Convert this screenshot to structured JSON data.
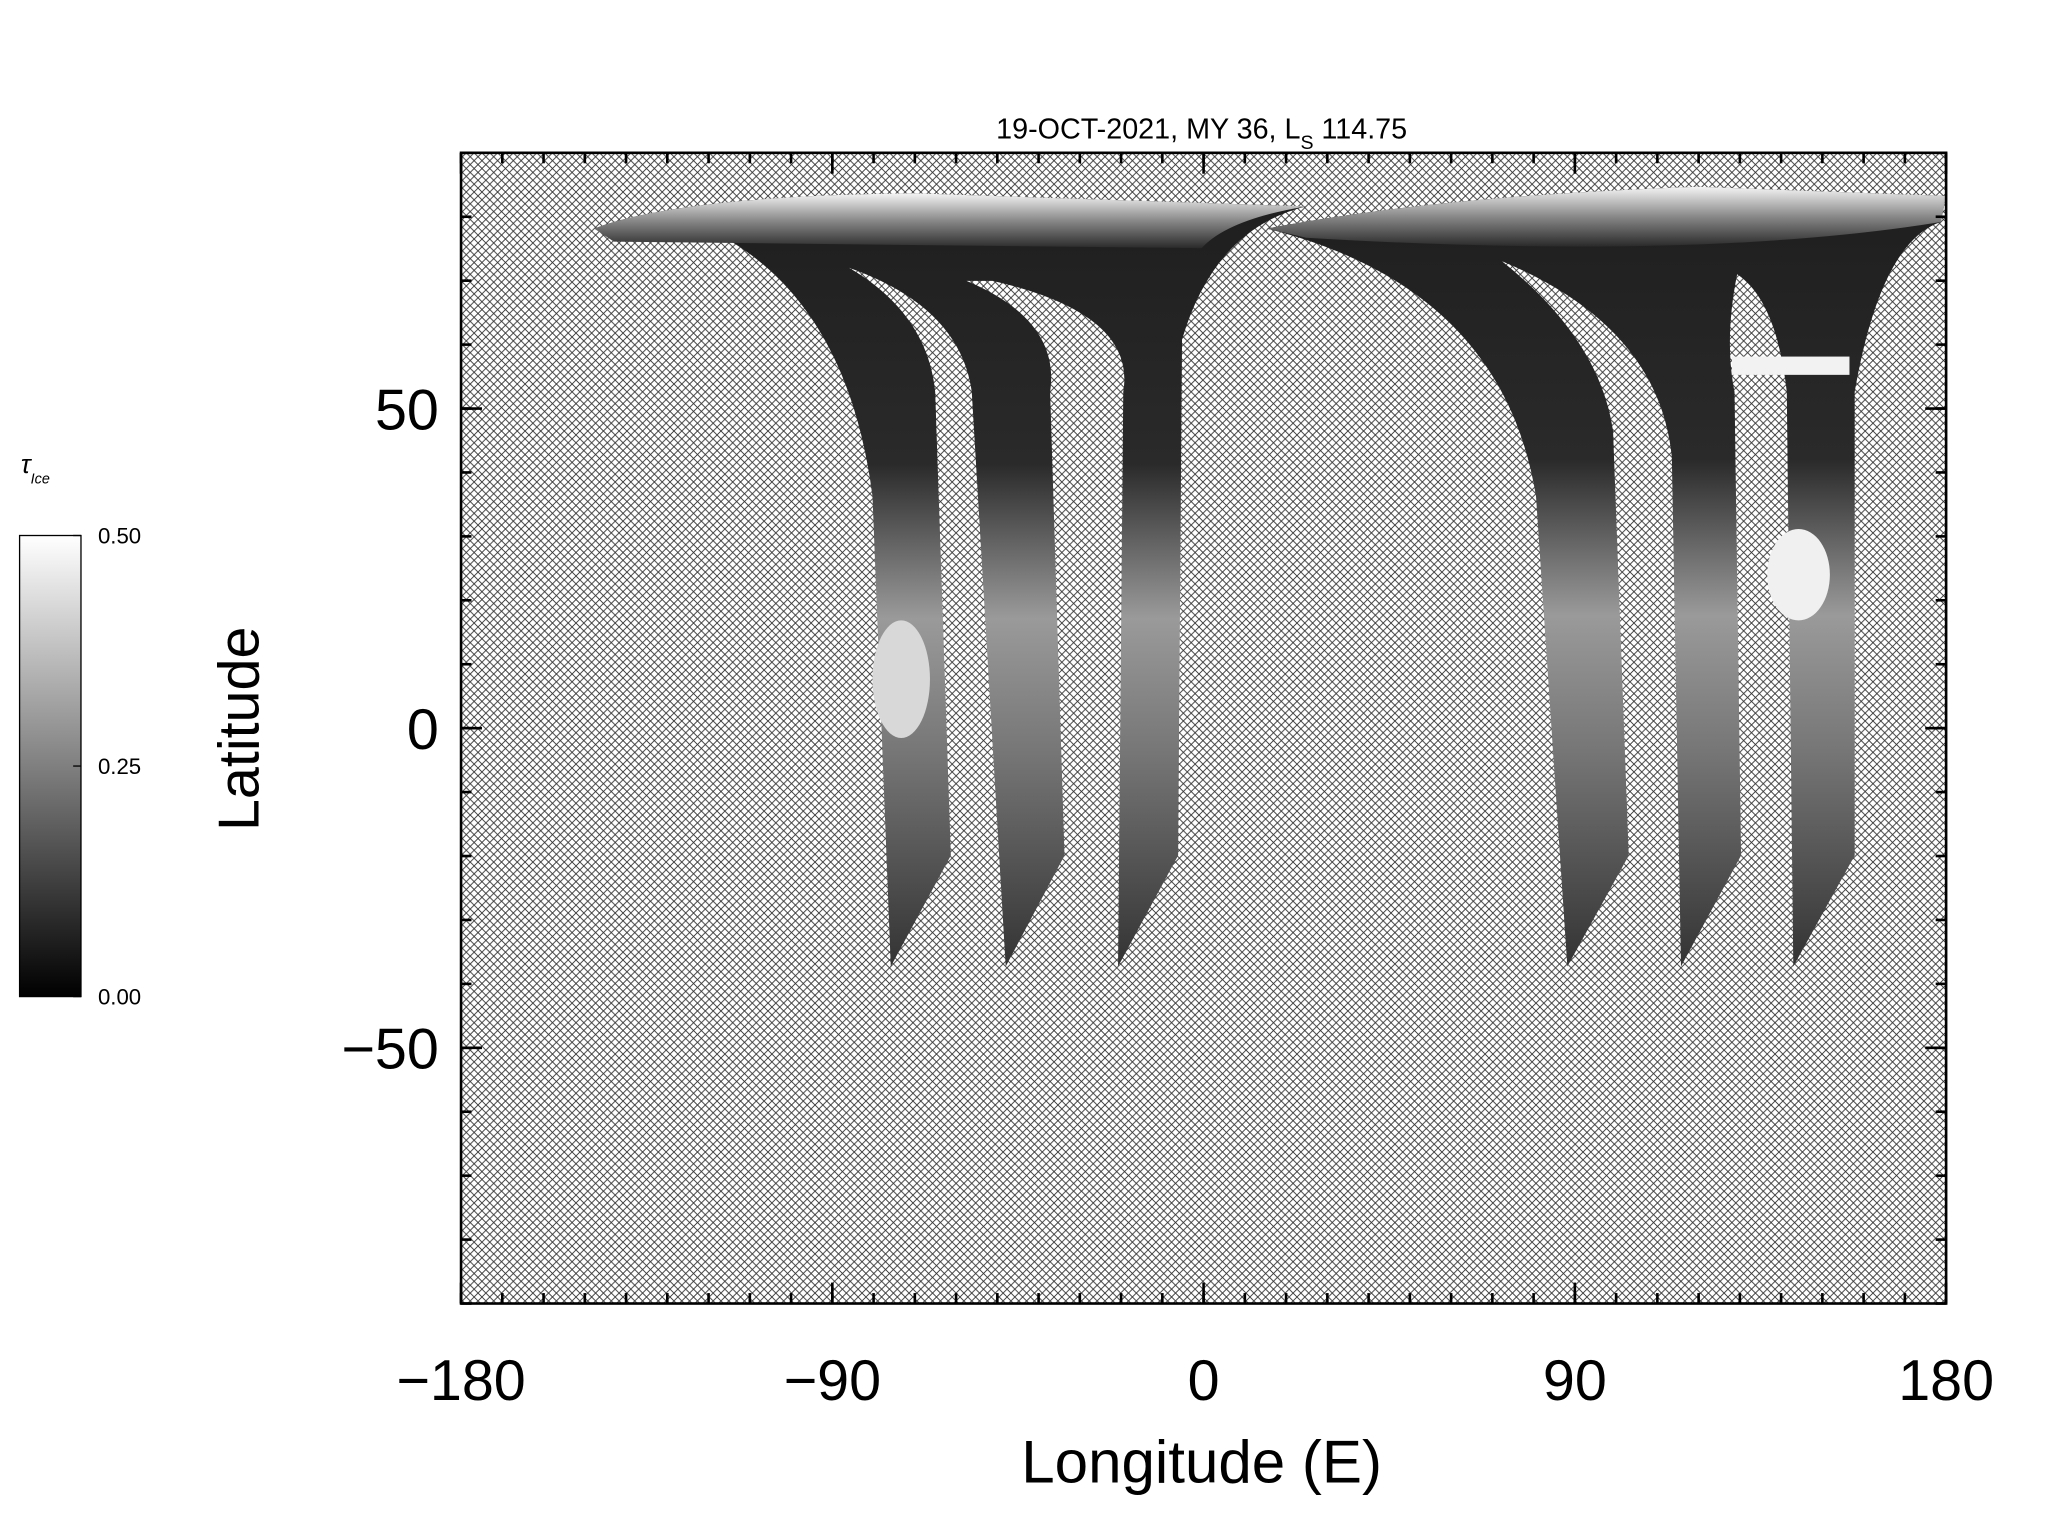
{
  "chart_data": {
    "type": "map",
    "title": "19-OCT-2021, MY 36,  L",
    "title_subscript": "S",
    "title_suffix": "114.75",
    "xlabel": "Longitude (E)",
    "ylabel": "Latitude",
    "xlim": [
      -180,
      180
    ],
    "ylim": [
      -90,
      90
    ],
    "xticks": [
      {
        "value": -180,
        "label": "−180"
      },
      {
        "value": -90,
        "label": "−90"
      },
      0,
      90,
      180
    ],
    "yticks": [
      {
        "value": -50,
        "label": "−50"
      },
      0,
      50
    ],
    "x_minor_step": 10,
    "y_minor_step": 10,
    "colorbar": {
      "label": "τ",
      "label_subscript": "Ice",
      "lim": [
        0,
        0.5
      ],
      "ticks": [
        {
          "value": 0,
          "label": "0.00"
        },
        {
          "value": 0.25,
          "label": "0.25"
        },
        {
          "value": 0.5,
          "label": "0.50"
        }
      ],
      "colors": [
        "#000000",
        "#ffffff"
      ]
    }
  }
}
